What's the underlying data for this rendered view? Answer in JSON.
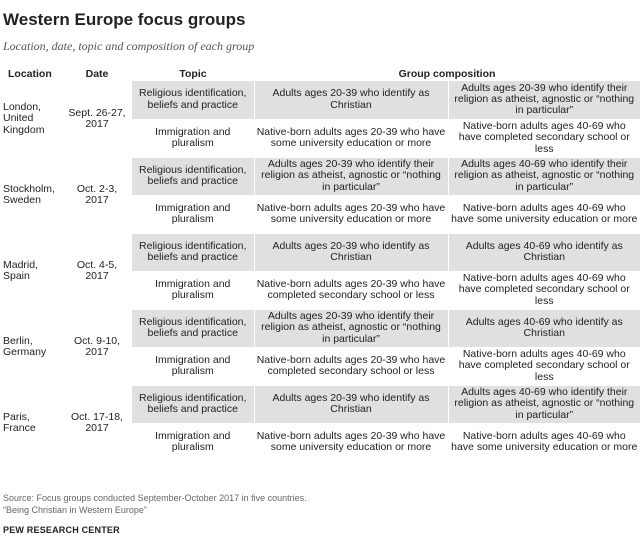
{
  "title": "Western Europe focus groups",
  "subtitle": "Location, date, topic and composition of each group",
  "headers": {
    "location": "Location",
    "date": "Date",
    "topic": "Topic",
    "composition": "Group composition"
  },
  "groups": [
    {
      "location": "London, United Kingdom",
      "date": "Sept. 26-27, 2017",
      "rows": [
        {
          "topic": "Religious identification, beliefs and practice",
          "c1": "Adults ages 20-39 who identify as Christian",
          "c2": "Adults ages 20-39 who identify their religion as atheist, agnostic or “nothing in particular”"
        },
        {
          "topic": "Immigration and pluralism",
          "c1": "Native-born adults ages 20-39 who have some university education or more",
          "c2": "Native-born adults ages 40-69 who have completed secondary school or less"
        }
      ]
    },
    {
      "location": "Stockholm, Sweden",
      "date": "Oct. 2-3, 2017",
      "rows": [
        {
          "topic": "Religious identification, beliefs and practice",
          "c1": "Adults ages 20-39 who identify their religion as atheist, agnostic or “nothing in particular”",
          "c2": "Adults ages 40-69 who identify their religion as atheist, agnostic or “nothing in particular”"
        },
        {
          "topic": "Immigration and pluralism",
          "c1": "Native-born adults ages 20-39 who have some university education or more",
          "c2": "Native-born adults ages 40-69 who have some university education or more"
        }
      ]
    },
    {
      "location": "Madrid, Spain",
      "date": "Oct. 4-5, 2017",
      "rows": [
        {
          "topic": "Religious identification, beliefs and practice",
          "c1": "Adults ages 20-39 who identify as Christian",
          "c2": "Adults ages 40-69 who identify as Christian"
        },
        {
          "topic": "Immigration and pluralism",
          "c1": "Native-born adults ages 20-39 who have completed secondary school or less",
          "c2": "Native-born adults ages 40-69 who have completed secondary school or less"
        }
      ]
    },
    {
      "location": "Berlin, Germany",
      "date": "Oct. 9-10, 2017",
      "rows": [
        {
          "topic": "Religious identification, beliefs and practice",
          "c1": "Adults ages 20-39 who identify their religion as atheist, agnostic or “nothing in particular”",
          "c2": "Adults ages 40-69 who identify as Christian"
        },
        {
          "topic": "Immigration and pluralism",
          "c1": "Native-born adults ages 20-39 who have completed secondary school or less",
          "c2": "Native-born adults ages 40-69 who have completed secondary school or less"
        }
      ]
    },
    {
      "location": "Paris, France",
      "date": "Oct. 17-18, 2017",
      "rows": [
        {
          "topic": "Religious identification, beliefs and practice",
          "c1": "Adults ages 20-39 who identify as Christian",
          "c2": "Adults ages 40-69 who identify their religion as atheist, agnostic or “nothing in particular”"
        },
        {
          "topic": "Immigration and pluralism",
          "c1": "Native-born adults ages 20-39 who have some university education or more",
          "c2": "Native-born adults ages 40-69 who have some university education or more"
        }
      ]
    }
  ],
  "source_line1": "Source: Focus groups conducted September-October 2017 in five countries.",
  "source_line2": "“Being Christian in Western Europe”",
  "brand": "PEW RESEARCH CENTER",
  "colors": {
    "shade": "#e0e0e0",
    "text": "#222222",
    "muted": "#666666"
  }
}
